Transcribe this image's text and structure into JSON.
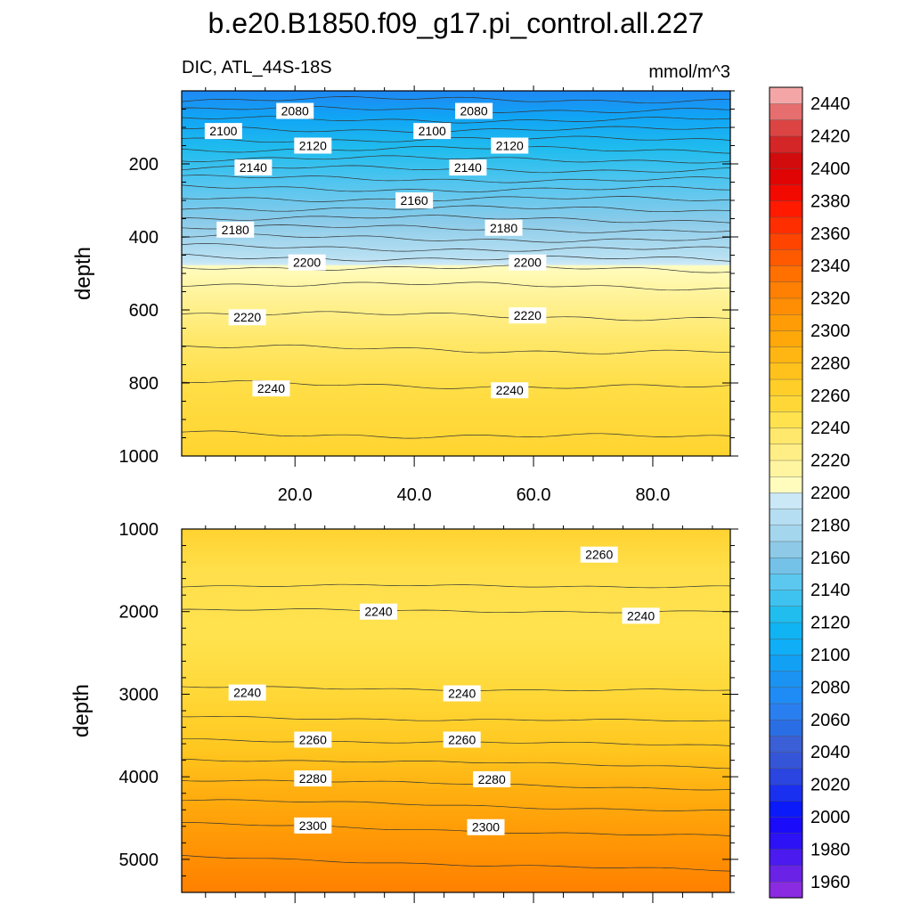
{
  "chart_data": {
    "type": "contour",
    "title": "b.e20.B1850.f09_g17.pi_control.all.227",
    "subtitle_left": "DIC, ATL_44S-18S",
    "subtitle_right": "mmol/m^3",
    "ylabel": "depth",
    "x_ticks": [
      "20.0",
      "40.0",
      "60.0",
      "80.0"
    ],
    "x_tick_values": [
      20,
      40,
      60,
      80
    ],
    "xlim": [
      1,
      93
    ],
    "top_panel": {
      "ylim": [
        0,
        1000
      ],
      "y_ticks": [
        "200",
        "400",
        "600",
        "800",
        "1000"
      ],
      "y_tick_values": [
        200,
        400,
        600,
        800,
        1000
      ],
      "contour_labels": [
        {
          "text": "2080",
          "x": 20,
          "depth": 55
        },
        {
          "text": "2080",
          "x": 50,
          "depth": 55
        },
        {
          "text": "2100",
          "x": 8,
          "depth": 110
        },
        {
          "text": "2100",
          "x": 43,
          "depth": 110
        },
        {
          "text": "2120",
          "x": 23,
          "depth": 150
        },
        {
          "text": "2120",
          "x": 56,
          "depth": 150
        },
        {
          "text": "2140",
          "x": 13,
          "depth": 210
        },
        {
          "text": "2140",
          "x": 49,
          "depth": 210
        },
        {
          "text": "2160",
          "x": 40,
          "depth": 300
        },
        {
          "text": "2180",
          "x": 10,
          "depth": 380
        },
        {
          "text": "2180",
          "x": 55,
          "depth": 375
        },
        {
          "text": "2200",
          "x": 22,
          "depth": 470
        },
        {
          "text": "2200",
          "x": 59,
          "depth": 470
        },
        {
          "text": "2220",
          "x": 12,
          "depth": 620
        },
        {
          "text": "2220",
          "x": 59,
          "depth": 615
        },
        {
          "text": "2240",
          "x": 16,
          "depth": 815
        },
        {
          "text": "2240",
          "x": 56,
          "depth": 820
        }
      ]
    },
    "bottom_panel": {
      "ylim": [
        1000,
        5400
      ],
      "y_ticks": [
        "1000",
        "2000",
        "3000",
        "4000",
        "5000"
      ],
      "y_tick_values": [
        1000,
        2000,
        3000,
        4000,
        5000
      ],
      "contour_labels": [
        {
          "text": "2260",
          "x": 71,
          "depth": 1310
        },
        {
          "text": "2240",
          "x": 34,
          "depth": 2000
        },
        {
          "text": "2240",
          "x": 78,
          "depth": 2050
        },
        {
          "text": "2240",
          "x": 12,
          "depth": 2980
        },
        {
          "text": "2240",
          "x": 48,
          "depth": 2990
        },
        {
          "text": "2260",
          "x": 23,
          "depth": 3550
        },
        {
          "text": "2260",
          "x": 48,
          "depth": 3550
        },
        {
          "text": "2280",
          "x": 23,
          "depth": 4020
        },
        {
          "text": "2280",
          "x": 53,
          "depth": 4030
        },
        {
          "text": "2300",
          "x": 23,
          "depth": 4590
        },
        {
          "text": "2300",
          "x": 52,
          "depth": 4610
        }
      ]
    },
    "colorbar": {
      "levels": [
        1950,
        1960,
        1970,
        1980,
        1990,
        2000,
        2010,
        2020,
        2030,
        2040,
        2050,
        2060,
        2070,
        2080,
        2090,
        2100,
        2110,
        2120,
        2130,
        2140,
        2150,
        2160,
        2170,
        2180,
        2190,
        2200,
        2210,
        2220,
        2230,
        2240,
        2250,
        2260,
        2270,
        2280,
        2290,
        2300,
        2310,
        2320,
        2330,
        2340,
        2350,
        2360,
        2370,
        2380,
        2390,
        2400,
        2410,
        2420,
        2430,
        2440,
        2450
      ],
      "labels": [
        "1960",
        "1980",
        "2000",
        "2020",
        "2040",
        "2060",
        "2080",
        "2100",
        "2120",
        "2140",
        "2160",
        "2180",
        "2200",
        "2220",
        "2240",
        "2260",
        "2280",
        "2300",
        "2320",
        "2340",
        "2360",
        "2380",
        "2400",
        "2420",
        "2440"
      ],
      "label_values": [
        1960,
        1980,
        2000,
        2020,
        2040,
        2060,
        2080,
        2100,
        2120,
        2140,
        2160,
        2180,
        2200,
        2220,
        2240,
        2260,
        2280,
        2300,
        2320,
        2340,
        2360,
        2380,
        2400,
        2420,
        2440
      ],
      "colors": [
        "#8a2be2",
        "#6a22e6",
        "#4b1aef",
        "#2c12f5",
        "#1a0cfa",
        "#0a1af8",
        "#1a30f0",
        "#2a45e0",
        "#3555d8",
        "#3a5fd6",
        "#2a6ee6",
        "#2a7ff0",
        "#1f8bf5",
        "#1a93f2",
        "#12a0f4",
        "#0faef6",
        "#10b4f2",
        "#20bdee",
        "#3ec3f0",
        "#5cc8f0",
        "#74c2e8",
        "#8ecae8",
        "#a4d6ee",
        "#b5def2",
        "#cae8f6",
        "#fffcbe",
        "#fff5a0",
        "#ffee86",
        "#ffe86c",
        "#ffe24e",
        "#ffd838",
        "#ffce28",
        "#ffc21c",
        "#ffb612",
        "#ffa80a",
        "#ff9c06",
        "#ff8e04",
        "#ff8002",
        "#ff7000",
        "#ff5a00",
        "#ff4400",
        "#ff2e00",
        "#ff1a00",
        "#f20a00",
        "#e00404",
        "#d20c0c",
        "#d42626",
        "#dc4444",
        "#e66e6e",
        "#f4a6a6"
      ]
    }
  }
}
